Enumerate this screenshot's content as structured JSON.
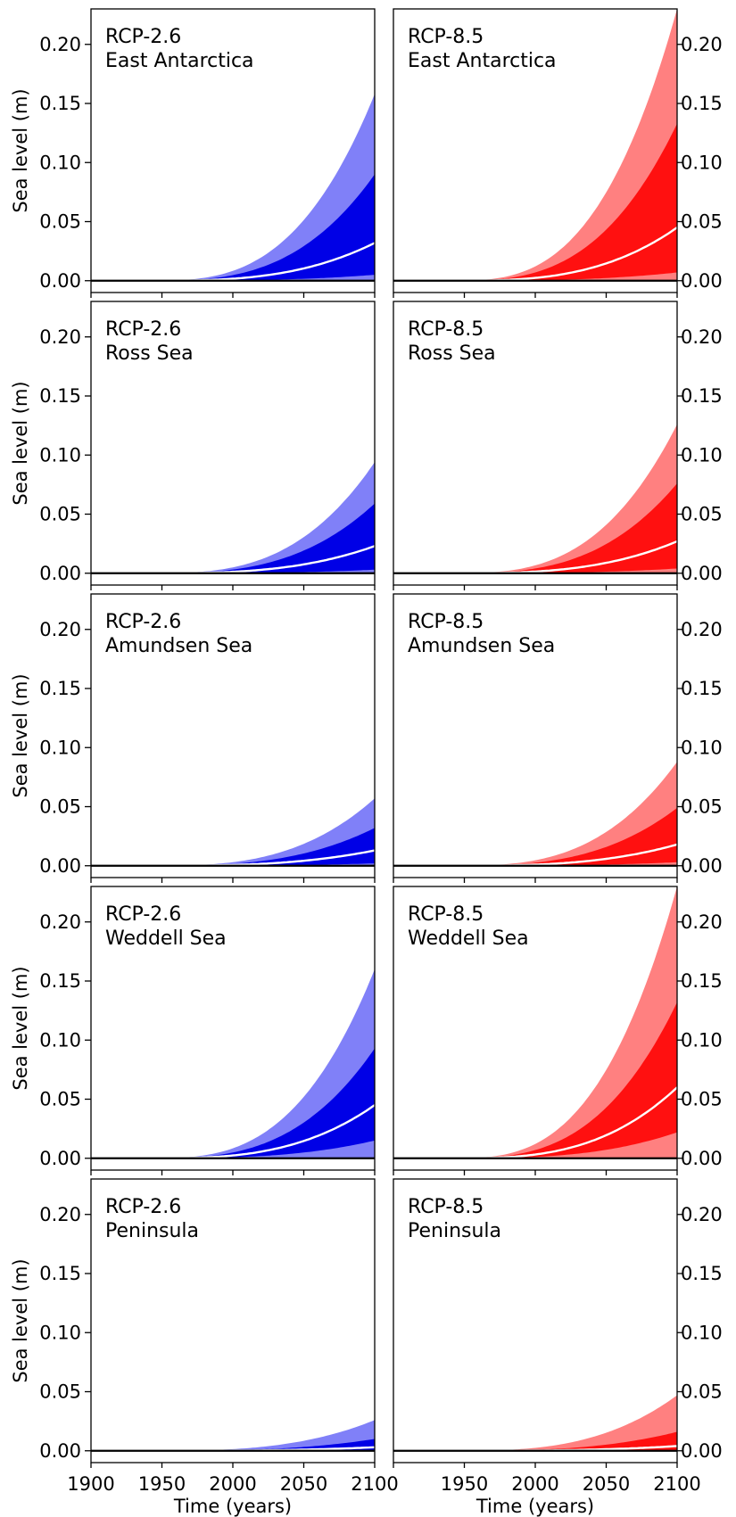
{
  "chart_data": {
    "type": "area",
    "layout": "5 rows x 2 columns, shared axes",
    "xlabel": "Time (years)",
    "ylabel": "Sea level (m)",
    "xlim": [
      1900,
      2100
    ],
    "ylim": [
      -0.01,
      0.23
    ],
    "x_ticks": [
      1900,
      1950,
      2000,
      2050,
      2100
    ],
    "x_tick_labels_left": [
      "1900",
      "1950",
      "2000",
      "2050",
      "2100"
    ],
    "x_tick_labels_right": [
      "1950",
      "2000",
      "2050",
      "2100"
    ],
    "y_ticks": [
      0.0,
      0.05,
      0.1,
      0.15,
      0.2
    ],
    "y_tick_labels": [
      "0.00",
      "0.05",
      "0.10",
      "0.15",
      "0.20"
    ],
    "y_axis_position": {
      "left_column": "left",
      "right_column": "right"
    },
    "grid": false,
    "onset_year": 1940,
    "growth_shape": "power",
    "scenarios": [
      {
        "name": "RCP-2.6",
        "color_outer": "#8080f8",
        "color_inner": "#0000e6",
        "color_median": "#ffffff"
      },
      {
        "name": "RCP-8.5",
        "color_outer": "#ff8080",
        "color_inner": "#ff1010",
        "color_median": "#ffffff"
      }
    ],
    "panels": [
      {
        "scenario": "RCP-2.6",
        "region": "East Antarctica",
        "values_2100": {
          "outer_lower": 0.0,
          "inner_lower": 0.005,
          "median": 0.032,
          "inner_upper": 0.09,
          "outer_upper": 0.158
        }
      },
      {
        "scenario": "RCP-8.5",
        "region": "East Antarctica",
        "values_2100": {
          "outer_lower": 0.0,
          "inner_lower": 0.007,
          "median": 0.045,
          "inner_upper": 0.133,
          "outer_upper": 0.23
        }
      },
      {
        "scenario": "RCP-2.6",
        "region": "Ross Sea",
        "values_2100": {
          "outer_lower": 0.0,
          "inner_lower": 0.003,
          "median": 0.023,
          "inner_upper": 0.059,
          "outer_upper": 0.094
        }
      },
      {
        "scenario": "RCP-8.5",
        "region": "Ross Sea",
        "values_2100": {
          "outer_lower": 0.0,
          "inner_lower": 0.004,
          "median": 0.027,
          "inner_upper": 0.076,
          "outer_upper": 0.126
        }
      },
      {
        "scenario": "RCP-2.6",
        "region": "Amundsen Sea",
        "values_2100": {
          "outer_lower": 0.0,
          "inner_lower": 0.002,
          "median": 0.013,
          "inner_upper": 0.032,
          "outer_upper": 0.057
        }
      },
      {
        "scenario": "RCP-8.5",
        "region": "Amundsen Sea",
        "values_2100": {
          "outer_lower": 0.0,
          "inner_lower": 0.003,
          "median": 0.018,
          "inner_upper": 0.049,
          "outer_upper": 0.088
        }
      },
      {
        "scenario": "RCP-2.6",
        "region": "Weddell Sea",
        "values_2100": {
          "outer_lower": 0.0,
          "inner_lower": 0.015,
          "median": 0.045,
          "inner_upper": 0.093,
          "outer_upper": 0.16
        }
      },
      {
        "scenario": "RCP-8.5",
        "region": "Weddell Sea",
        "values_2100": {
          "outer_lower": 0.0,
          "inner_lower": 0.022,
          "median": 0.06,
          "inner_upper": 0.132,
          "outer_upper": 0.23
        }
      },
      {
        "scenario": "RCP-2.6",
        "region": "Peninsula",
        "values_2100": {
          "outer_lower": 0.0,
          "inner_lower": 0.0,
          "median": 0.003,
          "inner_upper": 0.01,
          "outer_upper": 0.026
        }
      },
      {
        "scenario": "RCP-8.5",
        "region": "Peninsula",
        "values_2100": {
          "outer_lower": 0.0,
          "inner_lower": 0.0,
          "median": 0.004,
          "inner_upper": 0.016,
          "outer_upper": 0.047
        }
      }
    ]
  }
}
